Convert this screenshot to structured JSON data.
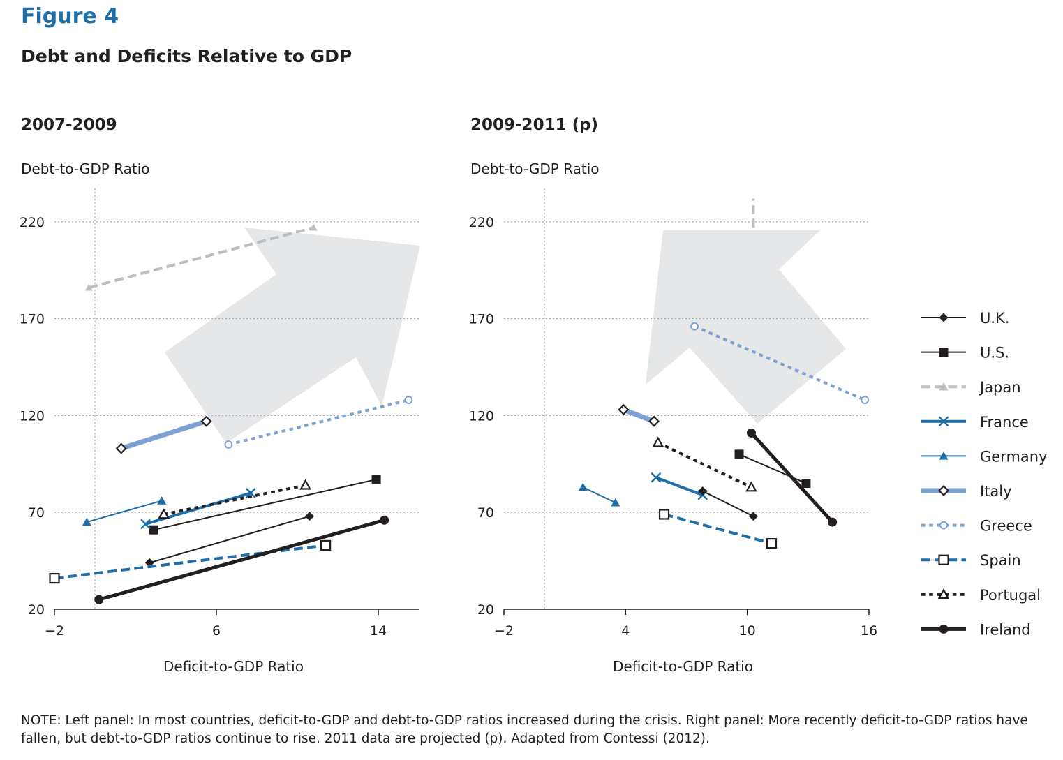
{
  "figure_label": "Figure 4",
  "figure_title": "Debt and Deficits Relative to GDP",
  "note": "NOTE: Left panel: In most countries, deficit-to-GDP and debt-to-GDP ratios increased during the crisis. Right panel: More recently deficit-to-GDP ratios have fallen, but debt-to-GDP ratios continue to rise. 2011 data are projected (p). Adapted from Contessi (2012).",
  "colors": {
    "black": "#231f20",
    "blue": "#1f6ea8",
    "lightblue": "#7ba2d0",
    "gray": "#bcbec0",
    "arrow": "#e6e7e8",
    "grid": "#a7a9ac"
  },
  "legend": [
    {
      "name": "U.K.",
      "color": "#231f20",
      "dash": "none",
      "width": 2,
      "marker": "diamond"
    },
    {
      "name": "U.S.",
      "color": "#231f20",
      "dash": "none",
      "width": 2,
      "marker": "square"
    },
    {
      "name": "Japan",
      "color": "#bcbec0",
      "dash": "dash",
      "width": 4,
      "marker": "triangle"
    },
    {
      "name": "France",
      "color": "#1f6ea8",
      "dash": "none",
      "width": 4,
      "marker": "x"
    },
    {
      "name": "Germany",
      "color": "#1f6ea8",
      "dash": "none",
      "width": 2,
      "marker": "triangle"
    },
    {
      "name": "Italy",
      "color": "#7ba2d0",
      "dash": "none",
      "width": 7,
      "marker": "diamond-open"
    },
    {
      "name": "Greece",
      "color": "#7ba2d0",
      "dash": "dot",
      "width": 4,
      "marker": "circle-open"
    },
    {
      "name": "Spain",
      "color": "#1f6ea8",
      "dash": "dash",
      "width": 4,
      "marker": "square-open"
    },
    {
      "name": "Portugal",
      "color": "#231f20",
      "dash": "dot",
      "width": 4,
      "marker": "triangle-open"
    },
    {
      "name": "Ireland",
      "color": "#231f20",
      "dash": "none",
      "width": 5,
      "marker": "circle"
    }
  ],
  "chart_data": [
    {
      "type": "line",
      "title": "2007-2009",
      "xlabel": "Deficit-to-GDP Ratio",
      "ylabel": "Debt-to-GDP Ratio",
      "xlim": [
        -2,
        16
      ],
      "ylim": [
        20,
        230
      ],
      "xticks": [
        -2,
        6,
        14
      ],
      "yticks": [
        20,
        70,
        120,
        170,
        220
      ],
      "xtick_labels": [
        "−2",
        "6",
        "14"
      ],
      "ytick_labels": [
        "20",
        "70",
        "120",
        "170",
        "220"
      ],
      "reference_line_x": 0,
      "arrow_direction": "up-right",
      "series": [
        {
          "name": "Japan",
          "x": [
            -0.3,
            10.8
          ],
          "y": [
            186,
            217
          ],
          "marker_at": "both-small"
        },
        {
          "name": "Italy",
          "x": [
            1.3,
            5.5
          ],
          "y": [
            103,
            117
          ],
          "marker_at": "both"
        },
        {
          "name": "Greece",
          "x": [
            6.6,
            15.5
          ],
          "y": [
            105,
            128
          ],
          "marker_at": "both"
        },
        {
          "name": "U.S.",
          "x": [
            2.9,
            13.9
          ],
          "y": [
            61,
            87
          ],
          "marker_at": "both"
        },
        {
          "name": "Germany",
          "x": [
            -0.4,
            3.3
          ],
          "y": [
            65,
            76
          ],
          "marker_at": "both"
        },
        {
          "name": "France",
          "x": [
            2.5,
            7.7
          ],
          "y": [
            64,
            80
          ],
          "marker_at": "both"
        },
        {
          "name": "Portugal",
          "x": [
            3.4,
            10.4
          ],
          "y": [
            69,
            84
          ],
          "marker_at": "both"
        },
        {
          "name": "U.K.",
          "x": [
            2.7,
            10.6
          ],
          "y": [
            44,
            68
          ],
          "marker_at": "both"
        },
        {
          "name": "Spain",
          "x": [
            -2.0,
            11.4
          ],
          "y": [
            36,
            53
          ],
          "marker_at": "both"
        },
        {
          "name": "Ireland",
          "x": [
            0.2,
            14.3
          ],
          "y": [
            25,
            66
          ],
          "marker_at": "both"
        }
      ]
    },
    {
      "type": "line",
      "title": "2009-2011 (p)",
      "xlabel": "Deficit-to-GDP Ratio",
      "ylabel": "Debt-to-GDP Ratio",
      "xlim": [
        -2,
        16
      ],
      "ylim": [
        20,
        230
      ],
      "xticks": [
        -2,
        4,
        10,
        16
      ],
      "yticks": [
        20,
        70,
        120,
        170,
        220
      ],
      "xtick_labels": [
        "−2",
        "4",
        "10",
        "16"
      ],
      "ytick_labels": [
        "20",
        "70",
        "120",
        "170",
        "220"
      ],
      "reference_line_x": 0,
      "arrow_direction": "up-left",
      "series": [
        {
          "name": "Japan",
          "x": [
            10.3,
            10.3
          ],
          "y": [
            217,
            232
          ],
          "marker_at": "none"
        },
        {
          "name": "Greece",
          "x": [
            7.4,
            15.8
          ],
          "y": [
            166,
            128
          ],
          "marker_at": "both"
        },
        {
          "name": "Italy",
          "x": [
            3.9,
            5.4
          ],
          "y": [
            123,
            117
          ],
          "marker_at": "both"
        },
        {
          "name": "Portugal",
          "x": [
            5.6,
            10.2
          ],
          "y": [
            106,
            83
          ],
          "marker_at": "both"
        },
        {
          "name": "Ireland",
          "x": [
            10.2,
            14.2
          ],
          "y": [
            111,
            65
          ],
          "marker_at": "both"
        },
        {
          "name": "U.S.",
          "x": [
            9.6,
            12.9
          ],
          "y": [
            100,
            85
          ],
          "marker_at": "both"
        },
        {
          "name": "France",
          "x": [
            5.5,
            7.8
          ],
          "y": [
            88,
            79
          ],
          "marker_at": "both"
        },
        {
          "name": "U.K.",
          "x": [
            7.8,
            10.3
          ],
          "y": [
            81,
            68
          ],
          "marker_at": "both"
        },
        {
          "name": "Germany",
          "x": [
            1.9,
            3.5
          ],
          "y": [
            83,
            75
          ],
          "marker_at": "both"
        },
        {
          "name": "Spain",
          "x": [
            5.9,
            11.2
          ],
          "y": [
            69,
            54
          ],
          "marker_at": "both"
        }
      ]
    }
  ]
}
